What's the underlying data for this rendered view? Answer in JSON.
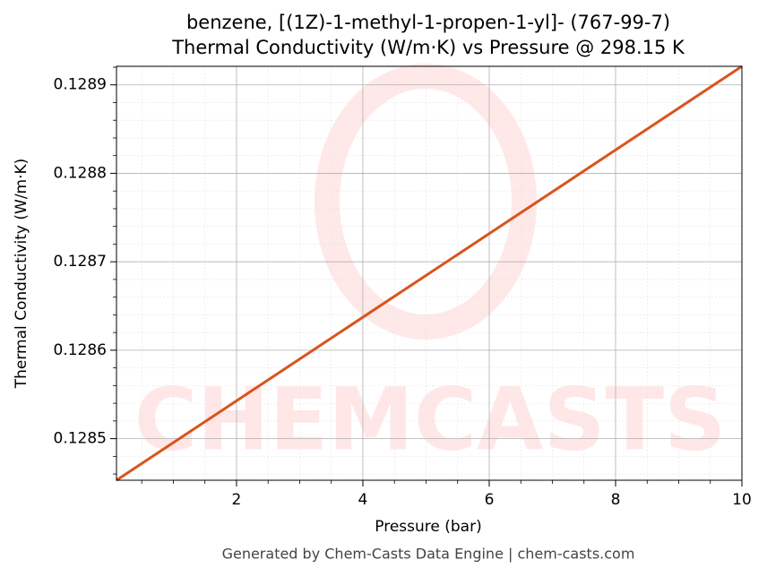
{
  "chart_data": {
    "type": "line",
    "title": "benzene, [(1Z)-1-methyl-1-propen-1-yl]- (767-99-7)",
    "subtitle": "Thermal Conductivity (W/m·K) vs Pressure @ 298.15 K",
    "x_label": "Pressure (bar)",
    "y_label": "Thermal Conductivity (W/m·K)",
    "footer": "Generated by Chem-Casts Data Engine | chem-casts.com",
    "x": [
      0.1,
      2,
      4,
      6,
      8,
      10
    ],
    "series": [
      {
        "name": "Thermal Conductivity",
        "color": "#d9541e",
        "values": [
          0.128453,
          0.1285428,
          0.1286373,
          0.1287318,
          0.1288264,
          0.128921
        ]
      }
    ],
    "xlim": [
      0.1,
      10
    ],
    "ylim": [
      0.128453,
      0.128921
    ],
    "xticks": [
      2,
      4,
      6,
      8,
      10
    ],
    "yticks": [
      0.1285,
      0.1286,
      0.1287,
      0.1288,
      0.1289
    ],
    "xminorticks": [
      0.5,
      1,
      1.5,
      2.5,
      3,
      3.5,
      4.5,
      5,
      5.5,
      6.5,
      7,
      7.5,
      8.5,
      9,
      9.5
    ],
    "yminorticks": [
      0.12846,
      0.12848,
      0.12852,
      0.12854,
      0.12856,
      0.12858,
      0.12862,
      0.12864,
      0.12866,
      0.12868,
      0.12872,
      0.12874,
      0.12876,
      0.12878,
      0.12882,
      0.12884,
      0.12886,
      0.12888,
      0.12892
    ],
    "grid": true
  }
}
